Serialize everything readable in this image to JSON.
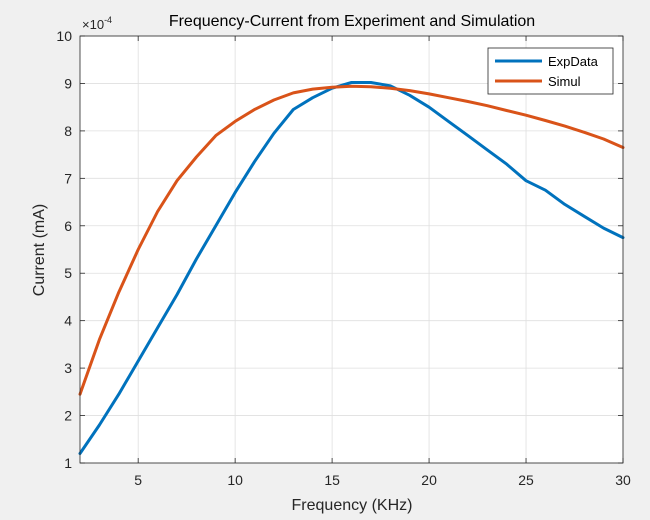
{
  "chart_data": {
    "type": "line",
    "title": "Frequency-Current from Experiment and Simulation",
    "xlabel": "Frequency (KHz)",
    "ylabel": "Current (mA)",
    "y_exponent_base": "×10",
    "y_exponent_power": "-4",
    "xlim": [
      2,
      30
    ],
    "ylim": [
      1,
      10
    ],
    "x_ticks": [
      5,
      10,
      15,
      20,
      25,
      30
    ],
    "y_ticks": [
      1,
      2,
      3,
      4,
      5,
      6,
      7,
      8,
      9,
      10
    ],
    "grid": true,
    "legend_position": "top-right",
    "series": [
      {
        "name": "ExpData",
        "color": "#0072BD",
        "x": [
          2,
          3,
          4,
          5,
          6,
          7,
          8,
          9,
          10,
          11,
          12,
          13,
          14,
          15,
          16,
          17,
          18,
          19,
          20,
          21,
          22,
          23,
          24,
          25,
          26,
          27,
          28,
          29,
          30
        ],
        "y": [
          1.2,
          1.8,
          2.45,
          3.15,
          3.85,
          4.55,
          5.3,
          6.0,
          6.7,
          7.35,
          7.95,
          8.45,
          8.7,
          8.9,
          9.02,
          9.02,
          8.95,
          8.75,
          8.5,
          8.2,
          7.9,
          7.6,
          7.3,
          6.95,
          6.75,
          6.45,
          6.2,
          5.95,
          5.75
        ]
      },
      {
        "name": "Simul",
        "color": "#D95319",
        "x": [
          2,
          3,
          4,
          5,
          6,
          7,
          8,
          9,
          10,
          11,
          12,
          13,
          14,
          15,
          16,
          17,
          18,
          19,
          20,
          21,
          22,
          23,
          24,
          25,
          26,
          27,
          28,
          29,
          30
        ],
        "y": [
          2.45,
          3.6,
          4.6,
          5.5,
          6.3,
          6.95,
          7.45,
          7.9,
          8.2,
          8.45,
          8.65,
          8.8,
          8.88,
          8.92,
          8.94,
          8.93,
          8.9,
          8.85,
          8.78,
          8.7,
          8.62,
          8.53,
          8.43,
          8.33,
          8.22,
          8.1,
          7.97,
          7.83,
          7.65
        ]
      }
    ]
  }
}
